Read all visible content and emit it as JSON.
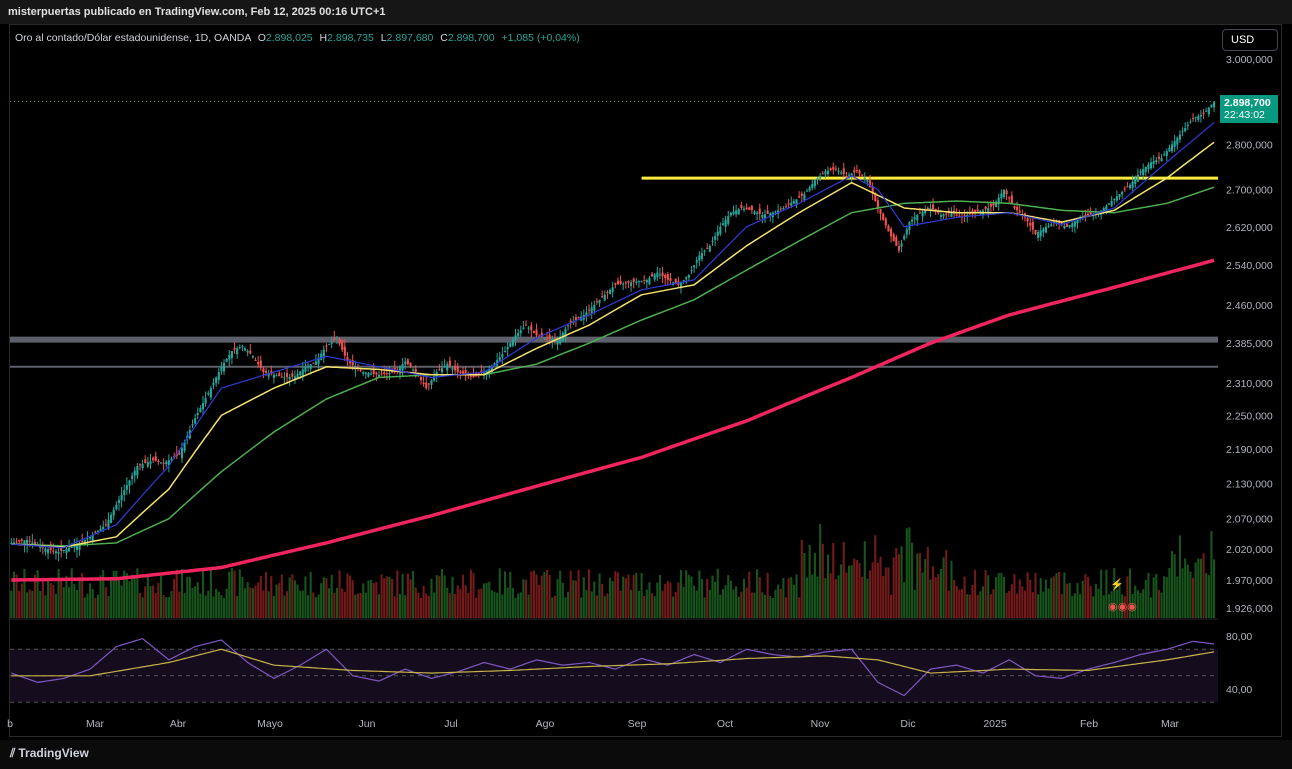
{
  "header": {
    "publish_text": "misterpuertas publicado en TradingView.com, Feb 12, 2025 00:16 UTC+1"
  },
  "legend": {
    "symbol": "Oro al contado/Dólar estadounidense, 1D, OANDA",
    "open_key": "O",
    "open": "2.898,025",
    "high_key": "H",
    "high": "2.898,735",
    "low_key": "L",
    "low": "2.897,680",
    "close_key": "C",
    "close": "2.898,700",
    "change": "+1,085 (+0,04%)"
  },
  "currency_button": "USD",
  "price_tag": {
    "price": "2.898,700",
    "countdown": "22:43:02"
  },
  "footer": {
    "brand": "TradingView"
  },
  "colors": {
    "up": "#26a69a",
    "down": "#ef5350",
    "ema_fast": "#2f3bd8",
    "ema_mid": "#f5e36b",
    "ema_slow": "#4caf50",
    "ema_long": "#f0245f",
    "resistance": "#ffeb3b",
    "support": "#5d606b",
    "rsi": "#7e57c2",
    "rsi_ma": "#c8b34a"
  },
  "chart_data": {
    "type": "candlestick",
    "symbol": "Oro al contado/Dólar estadounidense, 1D, OANDA",
    "y_axis": {
      "scale": "log",
      "ticks": [
        "3.000,000",
        "2.800,000",
        "2.700,000",
        "2.620,000",
        "2.540,000",
        "2.460,000",
        "2.385,000",
        "2.310,000",
        "2.250,000",
        "2.190,000",
        "2.130,000",
        "2.070,000",
        "2.020,000",
        "1.970,000",
        "1.926,000"
      ],
      "tick_values": [
        3000,
        2800,
        2700,
        2620,
        2540,
        2460,
        2385,
        2310,
        2250,
        2190,
        2130,
        2070,
        2020,
        1970,
        1926
      ]
    },
    "x_axis": {
      "ticks": [
        "b",
        "Mar",
        "Abr",
        "Mayo",
        "Jun",
        "Jul",
        "Ago",
        "Sep",
        "Oct",
        "Nov",
        "Dic",
        "2025",
        "Feb",
        "Mar"
      ]
    },
    "close_path": [
      [
        0,
        2030
      ],
      [
        6,
        2035
      ],
      [
        12,
        2022
      ],
      [
        18,
        2015
      ],
      [
        24,
        2025
      ],
      [
        30,
        2040
      ],
      [
        36,
        2060
      ],
      [
        42,
        2110
      ],
      [
        48,
        2160
      ],
      [
        54,
        2170
      ],
      [
        58,
        2165
      ],
      [
        64,
        2180
      ],
      [
        70,
        2245
      ],
      [
        76,
        2300
      ],
      [
        80,
        2340
      ],
      [
        84,
        2370
      ],
      [
        88,
        2380
      ],
      [
        92,
        2360
      ],
      [
        96,
        2330
      ],
      [
        100,
        2325
      ],
      [
        104,
        2320
      ],
      [
        108,
        2322
      ],
      [
        112,
        2340
      ],
      [
        116,
        2350
      ],
      [
        120,
        2380
      ],
      [
        124,
        2395
      ],
      [
        128,
        2350
      ],
      [
        134,
        2330
      ],
      [
        140,
        2325
      ],
      [
        146,
        2330
      ],
      [
        150,
        2350
      ],
      [
        154,
        2330
      ],
      [
        158,
        2300
      ],
      [
        162,
        2330
      ],
      [
        166,
        2345
      ],
      [
        170,
        2330
      ],
      [
        176,
        2320
      ],
      [
        182,
        2335
      ],
      [
        188,
        2370
      ],
      [
        192,
        2400
      ],
      [
        196,
        2420
      ],
      [
        200,
        2400
      ],
      [
        204,
        2395
      ],
      [
        208,
        2390
      ],
      [
        212,
        2420
      ],
      [
        218,
        2440
      ],
      [
        224,
        2470
      ],
      [
        230,
        2500
      ],
      [
        236,
        2505
      ],
      [
        242,
        2510
      ],
      [
        246,
        2525
      ],
      [
        250,
        2510
      ],
      [
        254,
        2500
      ],
      [
        258,
        2520
      ],
      [
        262,
        2560
      ],
      [
        266,
        2580
      ],
      [
        270,
        2620
      ],
      [
        274,
        2650
      ],
      [
        278,
        2660
      ],
      [
        282,
        2655
      ],
      [
        286,
        2645
      ],
      [
        290,
        2650
      ],
      [
        294,
        2660
      ],
      [
        298,
        2675
      ],
      [
        302,
        2690
      ],
      [
        306,
        2720
      ],
      [
        310,
        2740
      ],
      [
        314,
        2745
      ],
      [
        318,
        2730
      ],
      [
        322,
        2740
      ],
      [
        326,
        2720
      ],
      [
        330,
        2660
      ],
      [
        334,
        2610
      ],
      [
        338,
        2570
      ],
      [
        342,
        2630
      ],
      [
        346,
        2650
      ],
      [
        350,
        2660
      ],
      [
        354,
        2645
      ],
      [
        358,
        2650
      ],
      [
        362,
        2640
      ],
      [
        366,
        2650
      ],
      [
        370,
        2655
      ],
      [
        374,
        2665
      ],
      [
        378,
        2700
      ],
      [
        382,
        2660
      ],
      [
        386,
        2640
      ],
      [
        390,
        2605
      ],
      [
        394,
        2620
      ],
      [
        398,
        2630
      ],
      [
        402,
        2620
      ],
      [
        406,
        2635
      ],
      [
        410,
        2645
      ],
      [
        414,
        2650
      ],
      [
        418,
        2670
      ],
      [
        422,
        2690
      ],
      [
        426,
        2710
      ],
      [
        430,
        2740
      ],
      [
        434,
        2760
      ],
      [
        438,
        2770
      ],
      [
        442,
        2800
      ],
      [
        446,
        2830
      ],
      [
        450,
        2860
      ],
      [
        454,
        2870
      ],
      [
        458,
        2898.7
      ]
    ],
    "ema_fast_path": [
      [
        0,
        2028
      ],
      [
        20,
        2022
      ],
      [
        40,
        2060
      ],
      [
        60,
        2160
      ],
      [
        80,
        2300
      ],
      [
        100,
        2330
      ],
      [
        120,
        2360
      ],
      [
        140,
        2340
      ],
      [
        160,
        2320
      ],
      [
        180,
        2330
      ],
      [
        200,
        2395
      ],
      [
        220,
        2440
      ],
      [
        240,
        2490
      ],
      [
        260,
        2510
      ],
      [
        280,
        2620
      ],
      [
        300,
        2670
      ],
      [
        320,
        2730
      ],
      [
        330,
        2700
      ],
      [
        340,
        2620
      ],
      [
        360,
        2640
      ],
      [
        380,
        2650
      ],
      [
        400,
        2625
      ],
      [
        420,
        2660
      ],
      [
        440,
        2760
      ],
      [
        458,
        2850
      ]
    ],
    "ema_mid_path": [
      [
        0,
        2028
      ],
      [
        20,
        2023
      ],
      [
        40,
        2040
      ],
      [
        60,
        2120
      ],
      [
        80,
        2250
      ],
      [
        100,
        2300
      ],
      [
        120,
        2340
      ],
      [
        140,
        2335
      ],
      [
        160,
        2325
      ],
      [
        180,
        2325
      ],
      [
        200,
        2375
      ],
      [
        220,
        2420
      ],
      [
        240,
        2480
      ],
      [
        260,
        2500
      ],
      [
        280,
        2580
      ],
      [
        300,
        2650
      ],
      [
        320,
        2715
      ],
      [
        340,
        2660
      ],
      [
        360,
        2650
      ],
      [
        380,
        2650
      ],
      [
        400,
        2630
      ],
      [
        420,
        2655
      ],
      [
        440,
        2725
      ],
      [
        458,
        2805
      ]
    ],
    "ema_slow_path": [
      [
        0,
        2028
      ],
      [
        20,
        2025
      ],
      [
        40,
        2030
      ],
      [
        60,
        2070
      ],
      [
        80,
        2150
      ],
      [
        100,
        2220
      ],
      [
        120,
        2280
      ],
      [
        140,
        2320
      ],
      [
        160,
        2325
      ],
      [
        180,
        2325
      ],
      [
        200,
        2345
      ],
      [
        220,
        2385
      ],
      [
        240,
        2430
      ],
      [
        260,
        2470
      ],
      [
        280,
        2530
      ],
      [
        300,
        2590
      ],
      [
        320,
        2650
      ],
      [
        340,
        2670
      ],
      [
        360,
        2675
      ],
      [
        380,
        2670
      ],
      [
        400,
        2655
      ],
      [
        420,
        2650
      ],
      [
        440,
        2670
      ],
      [
        458,
        2705
      ]
    ],
    "ema_long_path": [
      [
        0,
        1970
      ],
      [
        40,
        1972
      ],
      [
        80,
        1990
      ],
      [
        120,
        2030
      ],
      [
        160,
        2075
      ],
      [
        200,
        2125
      ],
      [
        240,
        2175
      ],
      [
        280,
        2240
      ],
      [
        320,
        2320
      ],
      [
        350,
        2385
      ],
      [
        380,
        2440
      ],
      [
        420,
        2495
      ],
      [
        458,
        2550
      ]
    ],
    "resistance": {
      "value": 2725,
      "from": 240,
      "to": 458
    },
    "support_lines": [
      {
        "value": 2392,
        "thickness": "thick"
      },
      {
        "value": 2340,
        "thickness": "thin"
      }
    ],
    "volume": {
      "max_hint": 1.0
    },
    "rsi": {
      "ticks": [
        "80,00",
        "40,00"
      ],
      "tick_values": [
        80,
        40
      ],
      "band_upper": 70,
      "band_lower": 30,
      "path": [
        [
          0,
          52
        ],
        [
          10,
          45
        ],
        [
          20,
          48
        ],
        [
          30,
          55
        ],
        [
          40,
          72
        ],
        [
          50,
          78
        ],
        [
          60,
          62
        ],
        [
          70,
          72
        ],
        [
          80,
          77
        ],
        [
          90,
          60
        ],
        [
          100,
          48
        ],
        [
          110,
          58
        ],
        [
          120,
          70
        ],
        [
          130,
          50
        ],
        [
          140,
          46
        ],
        [
          150,
          55
        ],
        [
          160,
          48
        ],
        [
          170,
          53
        ],
        [
          180,
          60
        ],
        [
          190,
          55
        ],
        [
          200,
          62
        ],
        [
          210,
          58
        ],
        [
          220,
          60
        ],
        [
          230,
          55
        ],
        [
          240,
          63
        ],
        [
          250,
          58
        ],
        [
          260,
          66
        ],
        [
          270,
          60
        ],
        [
          280,
          70
        ],
        [
          290,
          66
        ],
        [
          300,
          64
        ],
        [
          310,
          68
        ],
        [
          320,
          70
        ],
        [
          330,
          45
        ],
        [
          340,
          35
        ],
        [
          350,
          55
        ],
        [
          360,
          58
        ],
        [
          370,
          52
        ],
        [
          380,
          62
        ],
        [
          390,
          50
        ],
        [
          400,
          48
        ],
        [
          410,
          55
        ],
        [
          420,
          60
        ],
        [
          430,
          66
        ],
        [
          440,
          70
        ],
        [
          450,
          76
        ],
        [
          458,
          74
        ]
      ],
      "ma_path": [
        [
          0,
          50
        ],
        [
          30,
          50
        ],
        [
          60,
          60
        ],
        [
          80,
          70
        ],
        [
          100,
          58
        ],
        [
          130,
          54
        ],
        [
          160,
          52
        ],
        [
          190,
          54
        ],
        [
          220,
          57
        ],
        [
          250,
          59
        ],
        [
          280,
          63
        ],
        [
          310,
          65
        ],
        [
          330,
          62
        ],
        [
          350,
          52
        ],
        [
          380,
          55
        ],
        [
          410,
          54
        ],
        [
          440,
          62
        ],
        [
          458,
          68
        ]
      ]
    }
  }
}
